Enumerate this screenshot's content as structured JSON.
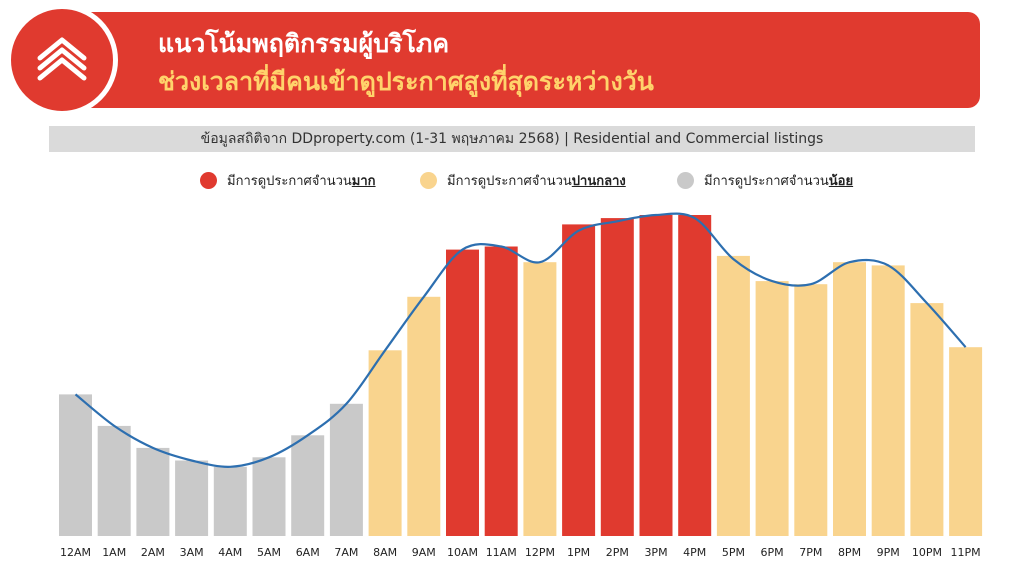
{
  "header": {
    "title_line1": "แนวโน้มพฤติกรรมผู้บริโภค",
    "title_line2": "ช่วงเวลาที่มีคนเข้าดูประกาศสูงที่สุดระหว่างวัน"
  },
  "source": "ข้อมูลสถิติจาก DDproperty.com (1-31 พฤษภาคม 2568) | Residential and Commercial listings",
  "legend": [
    {
      "prefix": "มีการดูประกาศจำนวน",
      "emphasis": "มาก",
      "color": "#e03a2f"
    },
    {
      "prefix": "มีการดูประกาศจำนวน",
      "emphasis": "ปานกลาง",
      "color": "#f9d48e"
    },
    {
      "prefix": "มีการดูประกาศจำนวน",
      "emphasis": "น้อย",
      "color": "#c9c9c9"
    }
  ],
  "chart_data": {
    "type": "bar",
    "categories": [
      "12AM",
      "1AM",
      "2AM",
      "3AM",
      "4AM",
      "5AM",
      "6AM",
      "7AM",
      "8AM",
      "9AM",
      "10AM",
      "11AM",
      "12PM",
      "1PM",
      "2PM",
      "3PM",
      "4PM",
      "5PM",
      "6PM",
      "7PM",
      "8PM",
      "9PM",
      "10PM",
      "11PM"
    ],
    "values": [
      45,
      35,
      28,
      24,
      22,
      25,
      32,
      42,
      59,
      76,
      91,
      92,
      87,
      99,
      101,
      102,
      102,
      89,
      81,
      80,
      87,
      86,
      74,
      60
    ],
    "line_values": [
      45,
      35,
      28,
      24,
      22,
      25,
      32,
      42,
      59,
      76,
      91,
      92,
      87,
      97,
      100,
      102,
      101,
      88,
      81,
      80,
      87,
      86,
      74,
      60
    ],
    "levels": [
      "low",
      "low",
      "low",
      "low",
      "low",
      "low",
      "low",
      "low",
      "mid",
      "mid",
      "high",
      "high",
      "mid",
      "high",
      "high",
      "high",
      "high",
      "mid",
      "mid",
      "mid",
      "mid",
      "mid",
      "mid",
      "mid"
    ],
    "level_colors": {
      "high": "#e03a2f",
      "mid": "#f9d48e",
      "low": "#c9c9c9"
    },
    "line_color": "#2d6fb0",
    "ylim": [
      0,
      102
    ],
    "grid": false
  }
}
